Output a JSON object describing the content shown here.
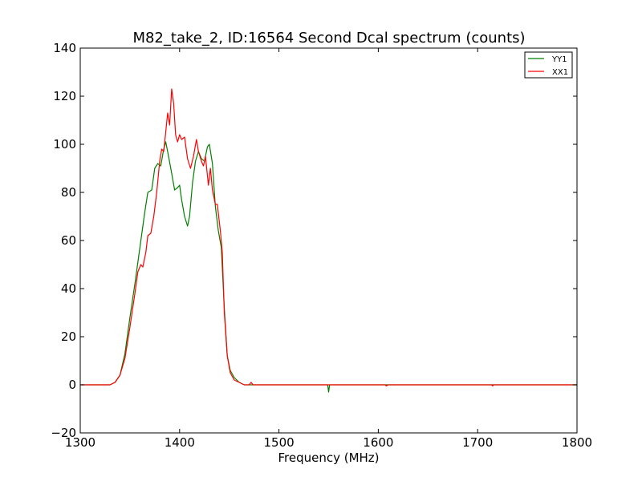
{
  "chart_data": {
    "type": "line",
    "title": "M82_take_2, ID:16564 Second Dcal spectrum (counts)",
    "xlabel": "Frequency (MHz)",
    "ylabel": "",
    "xlim": [
      1300,
      1800
    ],
    "ylim": [
      -20,
      140
    ],
    "xticks": [
      1300,
      1400,
      1500,
      1600,
      1700,
      1800
    ],
    "yticks": [
      -20,
      0,
      20,
      40,
      60,
      80,
      100,
      120,
      140
    ],
    "xtick_labels": [
      "1300",
      "1400",
      "1500",
      "1600",
      "1700",
      "1800"
    ],
    "ytick_labels": [
      "−20",
      "0",
      "20",
      "40",
      "60",
      "80",
      "100",
      "120",
      "140"
    ],
    "grid": false,
    "legend_position": "top-right",
    "series": [
      {
        "name": "YY1",
        "color": "#008000",
        "points": [
          [
            1300,
            0
          ],
          [
            1330,
            0
          ],
          [
            1335,
            1
          ],
          [
            1340,
            4
          ],
          [
            1345,
            13
          ],
          [
            1350,
            28
          ],
          [
            1355,
            42
          ],
          [
            1360,
            57
          ],
          [
            1365,
            72
          ],
          [
            1368,
            80
          ],
          [
            1372,
            81
          ],
          [
            1375,
            90
          ],
          [
            1378,
            92
          ],
          [
            1381,
            91
          ],
          [
            1384,
            98
          ],
          [
            1386,
            101
          ],
          [
            1388,
            97
          ],
          [
            1392,
            88
          ],
          [
            1395,
            81
          ],
          [
            1398,
            82
          ],
          [
            1400,
            83
          ],
          [
            1402,
            77
          ],
          [
            1405,
            70
          ],
          [
            1408,
            66
          ],
          [
            1410,
            70
          ],
          [
            1413,
            84
          ],
          [
            1416,
            93
          ],
          [
            1419,
            97
          ],
          [
            1422,
            94
          ],
          [
            1425,
            93
          ],
          [
            1428,
            99
          ],
          [
            1430,
            100
          ],
          [
            1433,
            92
          ],
          [
            1436,
            74
          ],
          [
            1439,
            64
          ],
          [
            1442,
            57
          ],
          [
            1445,
            32
          ],
          [
            1448,
            12
          ],
          [
            1451,
            6
          ],
          [
            1455,
            3
          ],
          [
            1460,
            1
          ],
          [
            1465,
            0
          ],
          [
            1470,
            0
          ],
          [
            1549,
            0
          ],
          [
            1550,
            -3
          ],
          [
            1551,
            0
          ],
          [
            1800,
            0
          ]
        ]
      },
      {
        "name": "XX1",
        "color": "#ff0000",
        "points": [
          [
            1300,
            0
          ],
          [
            1330,
            0
          ],
          [
            1335,
            1
          ],
          [
            1340,
            4
          ],
          [
            1345,
            11
          ],
          [
            1350,
            24
          ],
          [
            1355,
            38
          ],
          [
            1358,
            47
          ],
          [
            1361,
            50
          ],
          [
            1363,
            49
          ],
          [
            1366,
            55
          ],
          [
            1368,
            62
          ],
          [
            1371,
            63
          ],
          [
            1374,
            70
          ],
          [
            1377,
            80
          ],
          [
            1380,
            93
          ],
          [
            1382,
            98
          ],
          [
            1384,
            97
          ],
          [
            1386,
            105
          ],
          [
            1388,
            113
          ],
          [
            1390,
            108
          ],
          [
            1392,
            123
          ],
          [
            1394,
            117
          ],
          [
            1396,
            104
          ],
          [
            1398,
            101
          ],
          [
            1400,
            104
          ],
          [
            1402,
            102
          ],
          [
            1405,
            103
          ],
          [
            1408,
            94
          ],
          [
            1411,
            90
          ],
          [
            1414,
            95
          ],
          [
            1417,
            102
          ],
          [
            1419,
            97
          ],
          [
            1422,
            93
          ],
          [
            1424,
            91
          ],
          [
            1426,
            95
          ],
          [
            1429,
            83
          ],
          [
            1431,
            90
          ],
          [
            1433,
            81
          ],
          [
            1436,
            75
          ],
          [
            1438,
            75
          ],
          [
            1441,
            64
          ],
          [
            1443,
            55
          ],
          [
            1445,
            30
          ],
          [
            1448,
            12
          ],
          [
            1451,
            5
          ],
          [
            1455,
            2
          ],
          [
            1460,
            1
          ],
          [
            1465,
            0
          ],
          [
            1470,
            0
          ],
          [
            1472,
            1
          ],
          [
            1474,
            0
          ],
          [
            1607,
            0
          ],
          [
            1608,
            -0.5
          ],
          [
            1610,
            0
          ],
          [
            1714,
            0
          ],
          [
            1715,
            -0.5
          ],
          [
            1716,
            0
          ],
          [
            1800,
            0
          ]
        ]
      }
    ]
  }
}
